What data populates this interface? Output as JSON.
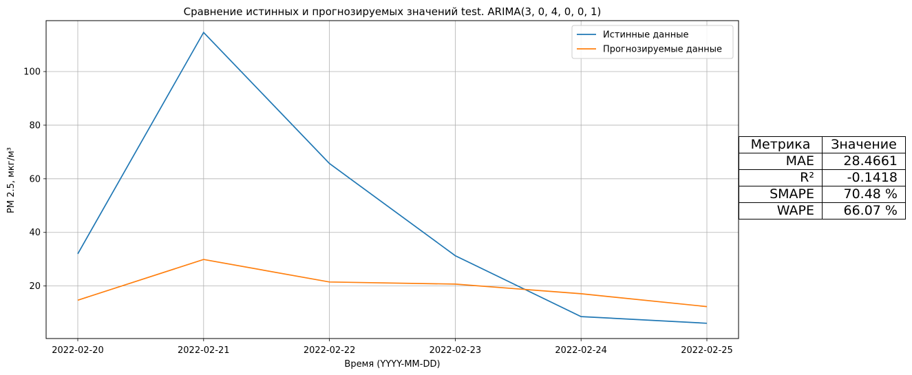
{
  "chart_data": {
    "type": "line",
    "title": "Сравнение истинных и прогнозируемых значений test. ARIMA(3, 0, 4, 0, 0, 1)",
    "xlabel": "Время (YYYY-MM-DD)",
    "ylabel": "PM 2.5, мкг/м³",
    "x": [
      "2022-02-20",
      "2022-02-21",
      "2022-02-22",
      "2022-02-23",
      "2022-02-24",
      "2022-02-25"
    ],
    "ylim": [
      0.4,
      119
    ],
    "yticks": [
      20,
      40,
      60,
      80,
      100
    ],
    "grid": true,
    "legend_position": "top-right",
    "series": [
      {
        "name": "Истинные данные",
        "color": "#1f77b4",
        "values": [
          32.0,
          114.6,
          65.7,
          31.3,
          8.6,
          6.1
        ]
      },
      {
        "name": "Прогнозируемые данные",
        "color": "#ff7f0e",
        "values": [
          14.7,
          29.9,
          21.5,
          20.7,
          17.1,
          12.3
        ]
      }
    ]
  },
  "metrics_table": {
    "header": [
      "Метрика",
      "Значение"
    ],
    "rows": [
      {
        "name": "MAE",
        "value": "28.4661"
      },
      {
        "name": "R²",
        "value": "-0.1418"
      },
      {
        "name": "SMAPE",
        "value": "70.48 %"
      },
      {
        "name": "WAPE",
        "value": "66.07 %"
      }
    ]
  }
}
